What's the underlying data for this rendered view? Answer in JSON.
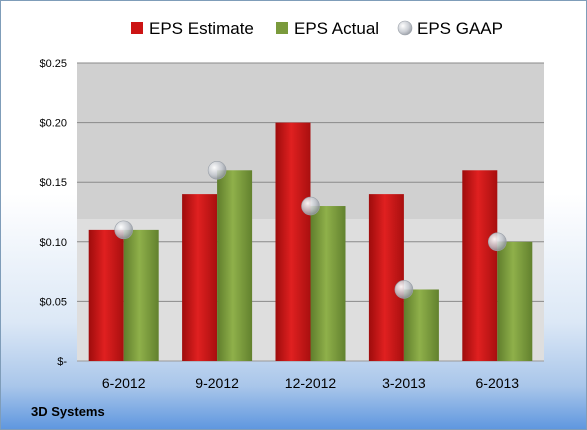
{
  "company": "3D Systems",
  "colors": {
    "estimate": "#cc1414",
    "actual": "#7a9a3c",
    "gaap": "#b8bcc4"
  },
  "chart_data": {
    "type": "bar",
    "categories": [
      "6-2012",
      "9-2012",
      "12-2012",
      "3-2013",
      "6-2013"
    ],
    "series": [
      {
        "name": "EPS Estimate",
        "kind": "bar",
        "values": [
          0.11,
          0.14,
          0.2,
          0.14,
          0.16
        ]
      },
      {
        "name": "EPS Actual",
        "kind": "bar",
        "values": [
          0.11,
          0.16,
          0.13,
          0.06,
          0.1
        ]
      },
      {
        "name": "EPS GAAP",
        "kind": "marker",
        "values": [
          0.11,
          0.16,
          0.13,
          0.06,
          0.1
        ]
      }
    ],
    "ylim": [
      0,
      0.25
    ],
    "yticks": [
      0,
      0.05,
      0.1,
      0.15,
      0.2,
      0.25
    ],
    "ytick_labels": [
      "$-",
      "$0.05",
      "$0.10",
      "$0.15",
      "$0.20",
      "$0.25"
    ],
    "grid": true,
    "legend": "top"
  }
}
